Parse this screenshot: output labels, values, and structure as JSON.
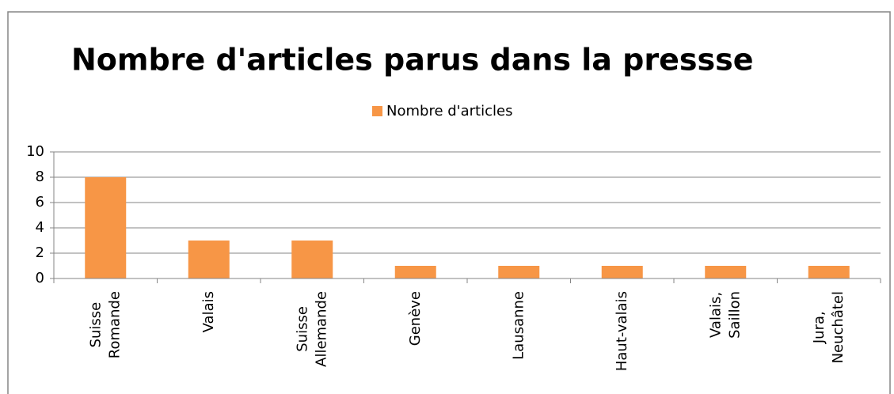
{
  "chart_data": {
    "type": "bar",
    "title": "Nombre d'articles parus dans la pressse",
    "categories": [
      "Suisse Romande",
      "Valais",
      "Suisse Allemande",
      "Genève",
      "Lausanne",
      "Haut-valais",
      "Valais, Saillon",
      "Jura, Neuchâtel"
    ],
    "series": [
      {
        "name": "Nombre d'articles",
        "color": "#f79646",
        "values": [
          8,
          3,
          3,
          1,
          1,
          1,
          1,
          1
        ]
      }
    ],
    "ylim": [
      0,
      10
    ],
    "yticks": [
      0,
      2,
      4,
      6,
      8,
      10
    ],
    "grid": true,
    "legend": "top"
  }
}
